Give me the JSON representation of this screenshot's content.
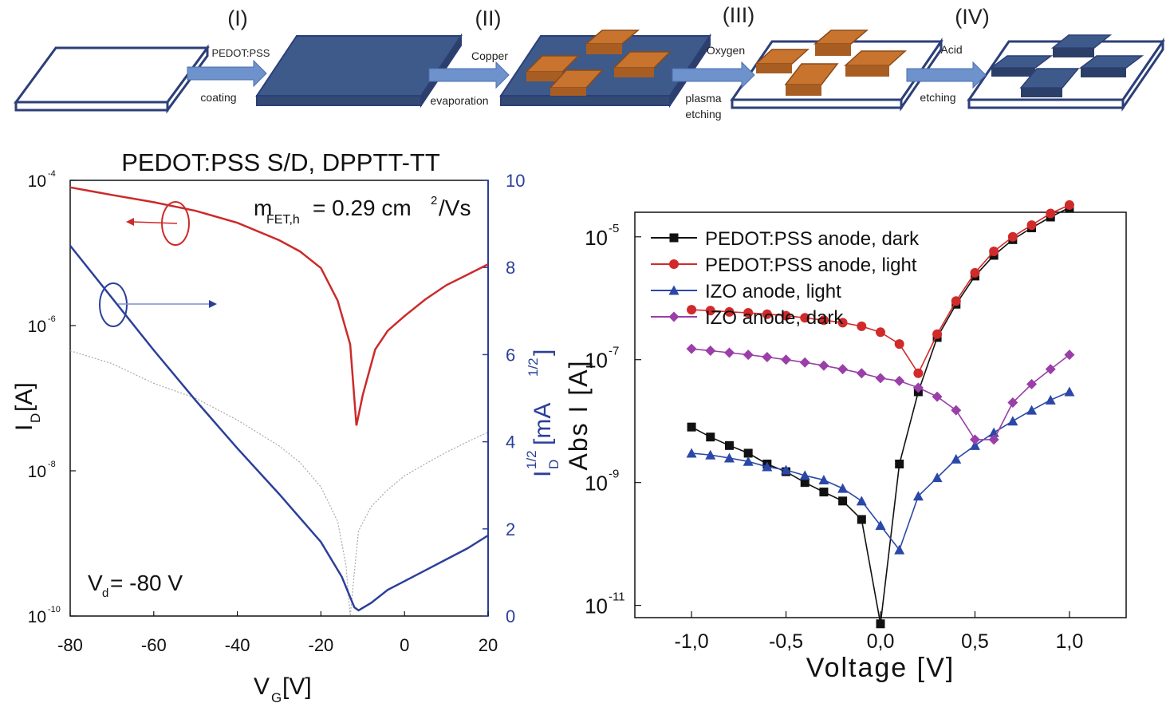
{
  "process": {
    "steps": [
      {
        "roman": "(I)",
        "top": "PEDOT:PSS",
        "bottom": "coating"
      },
      {
        "roman": "(II)",
        "top": "Copper",
        "bottom": "evaporation"
      },
      {
        "roman": "(III)",
        "top": "Oxygen",
        "bottom": "plasma",
        "bottom2": "etching"
      },
      {
        "roman": "(IV)",
        "top": "Acid",
        "bottom": "etching"
      }
    ],
    "colors": {
      "substrate": "#ffffff",
      "pedot": "#3d5a8a",
      "copper": "#c8742e",
      "arrow": "#6e92cc",
      "outline": "#2c3f78"
    }
  },
  "chart_data": [
    {
      "type": "line",
      "title": "PEDOT:PSS S/D, DPPTT-TT",
      "annotation_mobility": {
        "prefix": "m",
        "sub": "FET,h",
        "value": "= 0.29 cm",
        "sup": "2",
        "unit": "/Vs"
      },
      "annotation_vd": {
        "prefix": "V",
        "sub": "d",
        "value": " = -80 V"
      },
      "xlabel": {
        "main": "V",
        "sub": "G",
        "rest": " [V]"
      },
      "ylabel_left": {
        "main": "I",
        "sub": "D",
        "rest": " [A]"
      },
      "ylabel_right": {
        "main": "I",
        "sub": "D",
        "sup": "1/2",
        "rest": " [mA",
        "rest_sup": "1/2",
        "end": "]"
      },
      "xlim": [
        -80,
        20
      ],
      "x_ticks": [
        "-80",
        "-60",
        "-40",
        "-20",
        "0",
        "20"
      ],
      "ylim_left_log10": [
        -10,
        -4
      ],
      "y_ticks_left": [
        {
          "base": "10",
          "exp": "-4"
        },
        {
          "base": "10",
          "exp": "-6"
        },
        {
          "base": "10",
          "exp": "-8"
        },
        {
          "base": "10",
          "exp": "-10"
        }
      ],
      "ylim_right": [
        0,
        10
      ],
      "y_ticks_right": [
        "0",
        "2",
        "4",
        "6",
        "8",
        "10"
      ],
      "series": [
        {
          "color": "#cc2a2a",
          "axis": "left",
          "x": [
            -80,
            -70,
            -60,
            -50,
            -40,
            -30,
            -25,
            -20,
            -16,
            -13,
            -11.5,
            -10,
            -7,
            -4,
            0,
            5,
            10,
            15,
            20
          ],
          "y": [
            8e-05,
            6.3e-05,
            5e-05,
            3.8e-05,
            2.6e-05,
            1.5e-05,
            1.05e-05,
            6.2e-06,
            2.2e-06,
            5.5e-07,
            4.2e-08,
            1.1e-07,
            4.7e-07,
            8.5e-07,
            1.35e-06,
            2.3e-06,
            3.6e-06,
            5e-06,
            7e-06
          ]
        },
        {
          "color": "#2b3f9a",
          "axis": "right",
          "x": [
            -80,
            -70,
            -60,
            -50,
            -40,
            -30,
            -20,
            -15,
            -12,
            -11,
            -8,
            -4,
            0,
            5,
            10,
            15,
            20
          ],
          "y": [
            8.5,
            7.3,
            6.1,
            4.95,
            3.85,
            2.8,
            1.7,
            0.9,
            0.2,
            0.13,
            0.3,
            0.6,
            0.8,
            1.05,
            1.3,
            1.55,
            1.85
          ]
        },
        {
          "color": "#aaaaaa",
          "axis": "left",
          "x": [
            -80,
            -70,
            -60,
            -50,
            -40,
            -30,
            -25,
            -20,
            -16,
            -14,
            -13,
            -12,
            -11,
            -8,
            -4,
            0,
            5,
            10,
            15,
            20
          ],
          "y": [
            4.5e-07,
            3e-07,
            1.6e-07,
            1e-07,
            5e-08,
            2.2e-08,
            1.3e-08,
            6e-09,
            2e-09,
            5e-10,
            1e-10,
            4e-10,
            1.5e-09,
            3.2e-09,
            5.5e-09,
            8.5e-09,
            1.25e-08,
            1.8e-08,
            2.5e-08,
            3.4e-08
          ]
        }
      ],
      "indicators": [
        {
          "series": 0,
          "direction": "left",
          "color": "#cc2a2a"
        },
        {
          "series": 1,
          "direction": "right",
          "color": "#2b3f9a"
        }
      ]
    },
    {
      "type": "line",
      "xlabel": "Voltage [V]",
      "ylabel": "Abs I [A]",
      "xlim": [
        -1.3,
        1.3
      ],
      "x_ticks": [
        "-1,0",
        "-0,5",
        "0,0",
        "0,5",
        "1,0"
      ],
      "ylim_log10": [
        -11.2,
        -4.6
      ],
      "y_ticks": [
        {
          "base": "10",
          "exp": "-5"
        },
        {
          "base": "10",
          "exp": "-7"
        },
        {
          "base": "10",
          "exp": "-9"
        },
        {
          "base": "10",
          "exp": "-11"
        }
      ],
      "legend_position": "top-left",
      "series": [
        {
          "name": "PEDOT:PSS anode, dark",
          "color": "#111111",
          "marker": "square",
          "x": [
            -1.0,
            -0.9,
            -0.8,
            -0.7,
            -0.6,
            -0.5,
            -0.4,
            -0.3,
            -0.2,
            -0.1,
            0.0,
            0.1,
            0.2,
            0.3,
            0.4,
            0.5,
            0.6,
            0.7,
            0.8,
            0.9,
            1.0
          ],
          "y": [
            8e-09,
            5.5e-09,
            4e-09,
            3e-09,
            2e-09,
            1.5e-09,
            1e-09,
            7e-10,
            5e-10,
            2.5e-10,
            5e-12,
            2e-09,
            3e-08,
            2.3e-07,
            8e-07,
            2.3e-06,
            5e-06,
            9e-06,
            1.4e-05,
            2.1e-05,
            3e-05
          ]
        },
        {
          "name": "PEDOT:PSS anode, light",
          "color": "#d02a2a",
          "marker": "circle",
          "x": [
            -1.0,
            -0.9,
            -0.8,
            -0.7,
            -0.6,
            -0.5,
            -0.4,
            -0.3,
            -0.2,
            -0.1,
            0.0,
            0.1,
            0.2,
            0.3,
            0.4,
            0.5,
            0.6,
            0.7,
            0.8,
            0.9,
            1.0
          ],
          "y": [
            6.5e-07,
            6.3e-07,
            6e-07,
            5.8e-07,
            5.5e-07,
            5.2e-07,
            4.8e-07,
            4.4e-07,
            4e-07,
            3.5e-07,
            2.8e-07,
            1.8e-07,
            6e-08,
            2.6e-07,
            9e-07,
            2.6e-06,
            5.8e-06,
            1e-05,
            1.55e-05,
            2.4e-05,
            3.3e-05
          ]
        },
        {
          "name": "IZO anode, light",
          "color": "#2b48a8",
          "marker": "triangle",
          "x": [
            -1.0,
            -0.9,
            -0.8,
            -0.7,
            -0.6,
            -0.5,
            -0.4,
            -0.3,
            -0.2,
            -0.1,
            0.0,
            0.1,
            0.2,
            0.3,
            0.4,
            0.5,
            0.6,
            0.7,
            0.8,
            0.9,
            1.0
          ],
          "y": [
            3e-09,
            2.8e-09,
            2.5e-09,
            2.2e-09,
            1.8e-09,
            1.6e-09,
            1.3e-09,
            1.1e-09,
            8e-10,
            5e-10,
            2e-10,
            8e-11,
            6e-10,
            1.2e-09,
            2.4e-09,
            4e-09,
            6.5e-09,
            1e-08,
            1.5e-08,
            2.2e-08,
            3e-08
          ]
        },
        {
          "name": "IZO anode, dark",
          "color": "#9a3fa8",
          "marker": "diamond",
          "x": [
            -1.0,
            -0.9,
            -0.8,
            -0.7,
            -0.6,
            -0.5,
            -0.4,
            -0.3,
            -0.2,
            -0.1,
            0.0,
            0.1,
            0.2,
            0.3,
            0.4,
            0.5,
            0.6,
            0.7,
            0.8,
            0.9,
            1.0
          ],
          "y": [
            1.5e-07,
            1.4e-07,
            1.3e-07,
            1.2e-07,
            1.1e-07,
            1e-07,
            9e-08,
            8e-08,
            7e-08,
            6e-08,
            5e-08,
            4.5e-08,
            3.5e-08,
            2.5e-08,
            1.5e-08,
            5e-09,
            5e-09,
            2e-08,
            4e-08,
            7e-08,
            1.2e-07
          ]
        }
      ]
    }
  ]
}
